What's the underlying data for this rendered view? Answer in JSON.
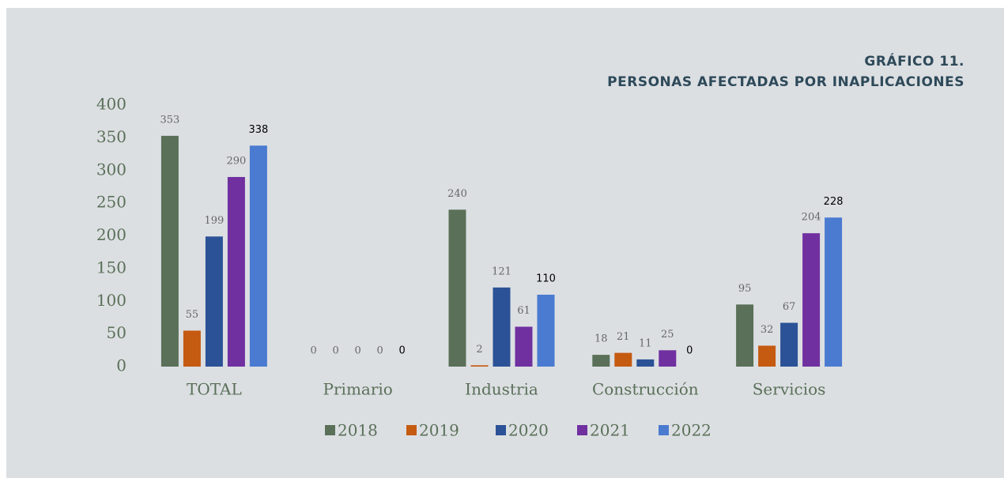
{
  "chart_data": {
    "type": "bar",
    "title": "GRÁFICO 11.",
    "subtitle": "PERSONAS AFECTADAS POR INAPLICACIONES",
    "categories": [
      "TOTAL",
      "Primario",
      "Industria",
      "Construcción",
      "Servicios"
    ],
    "series": [
      {
        "name": "2018",
        "color": "#5a7059",
        "values": [
          353,
          0,
          240,
          18,
          95
        ]
      },
      {
        "name": "2019",
        "color": "#c55a11",
        "values": [
          55,
          0,
          2,
          21,
          32
        ]
      },
      {
        "name": "2020",
        "color": "#2b5296",
        "values": [
          199,
          0,
          121,
          11,
          67
        ]
      },
      {
        "name": "2021",
        "color": "#7030a0",
        "values": [
          290,
          0,
          61,
          25,
          204
        ]
      },
      {
        "name": "2022",
        "color": "#4a7bd0",
        "values": [
          338,
          0,
          110,
          0,
          228
        ]
      }
    ],
    "ylim": [
      0,
      400
    ],
    "yticks": [
      0,
      50,
      100,
      150,
      200,
      250,
      300,
      350,
      400
    ],
    "grid": false,
    "legend": "bottom"
  }
}
